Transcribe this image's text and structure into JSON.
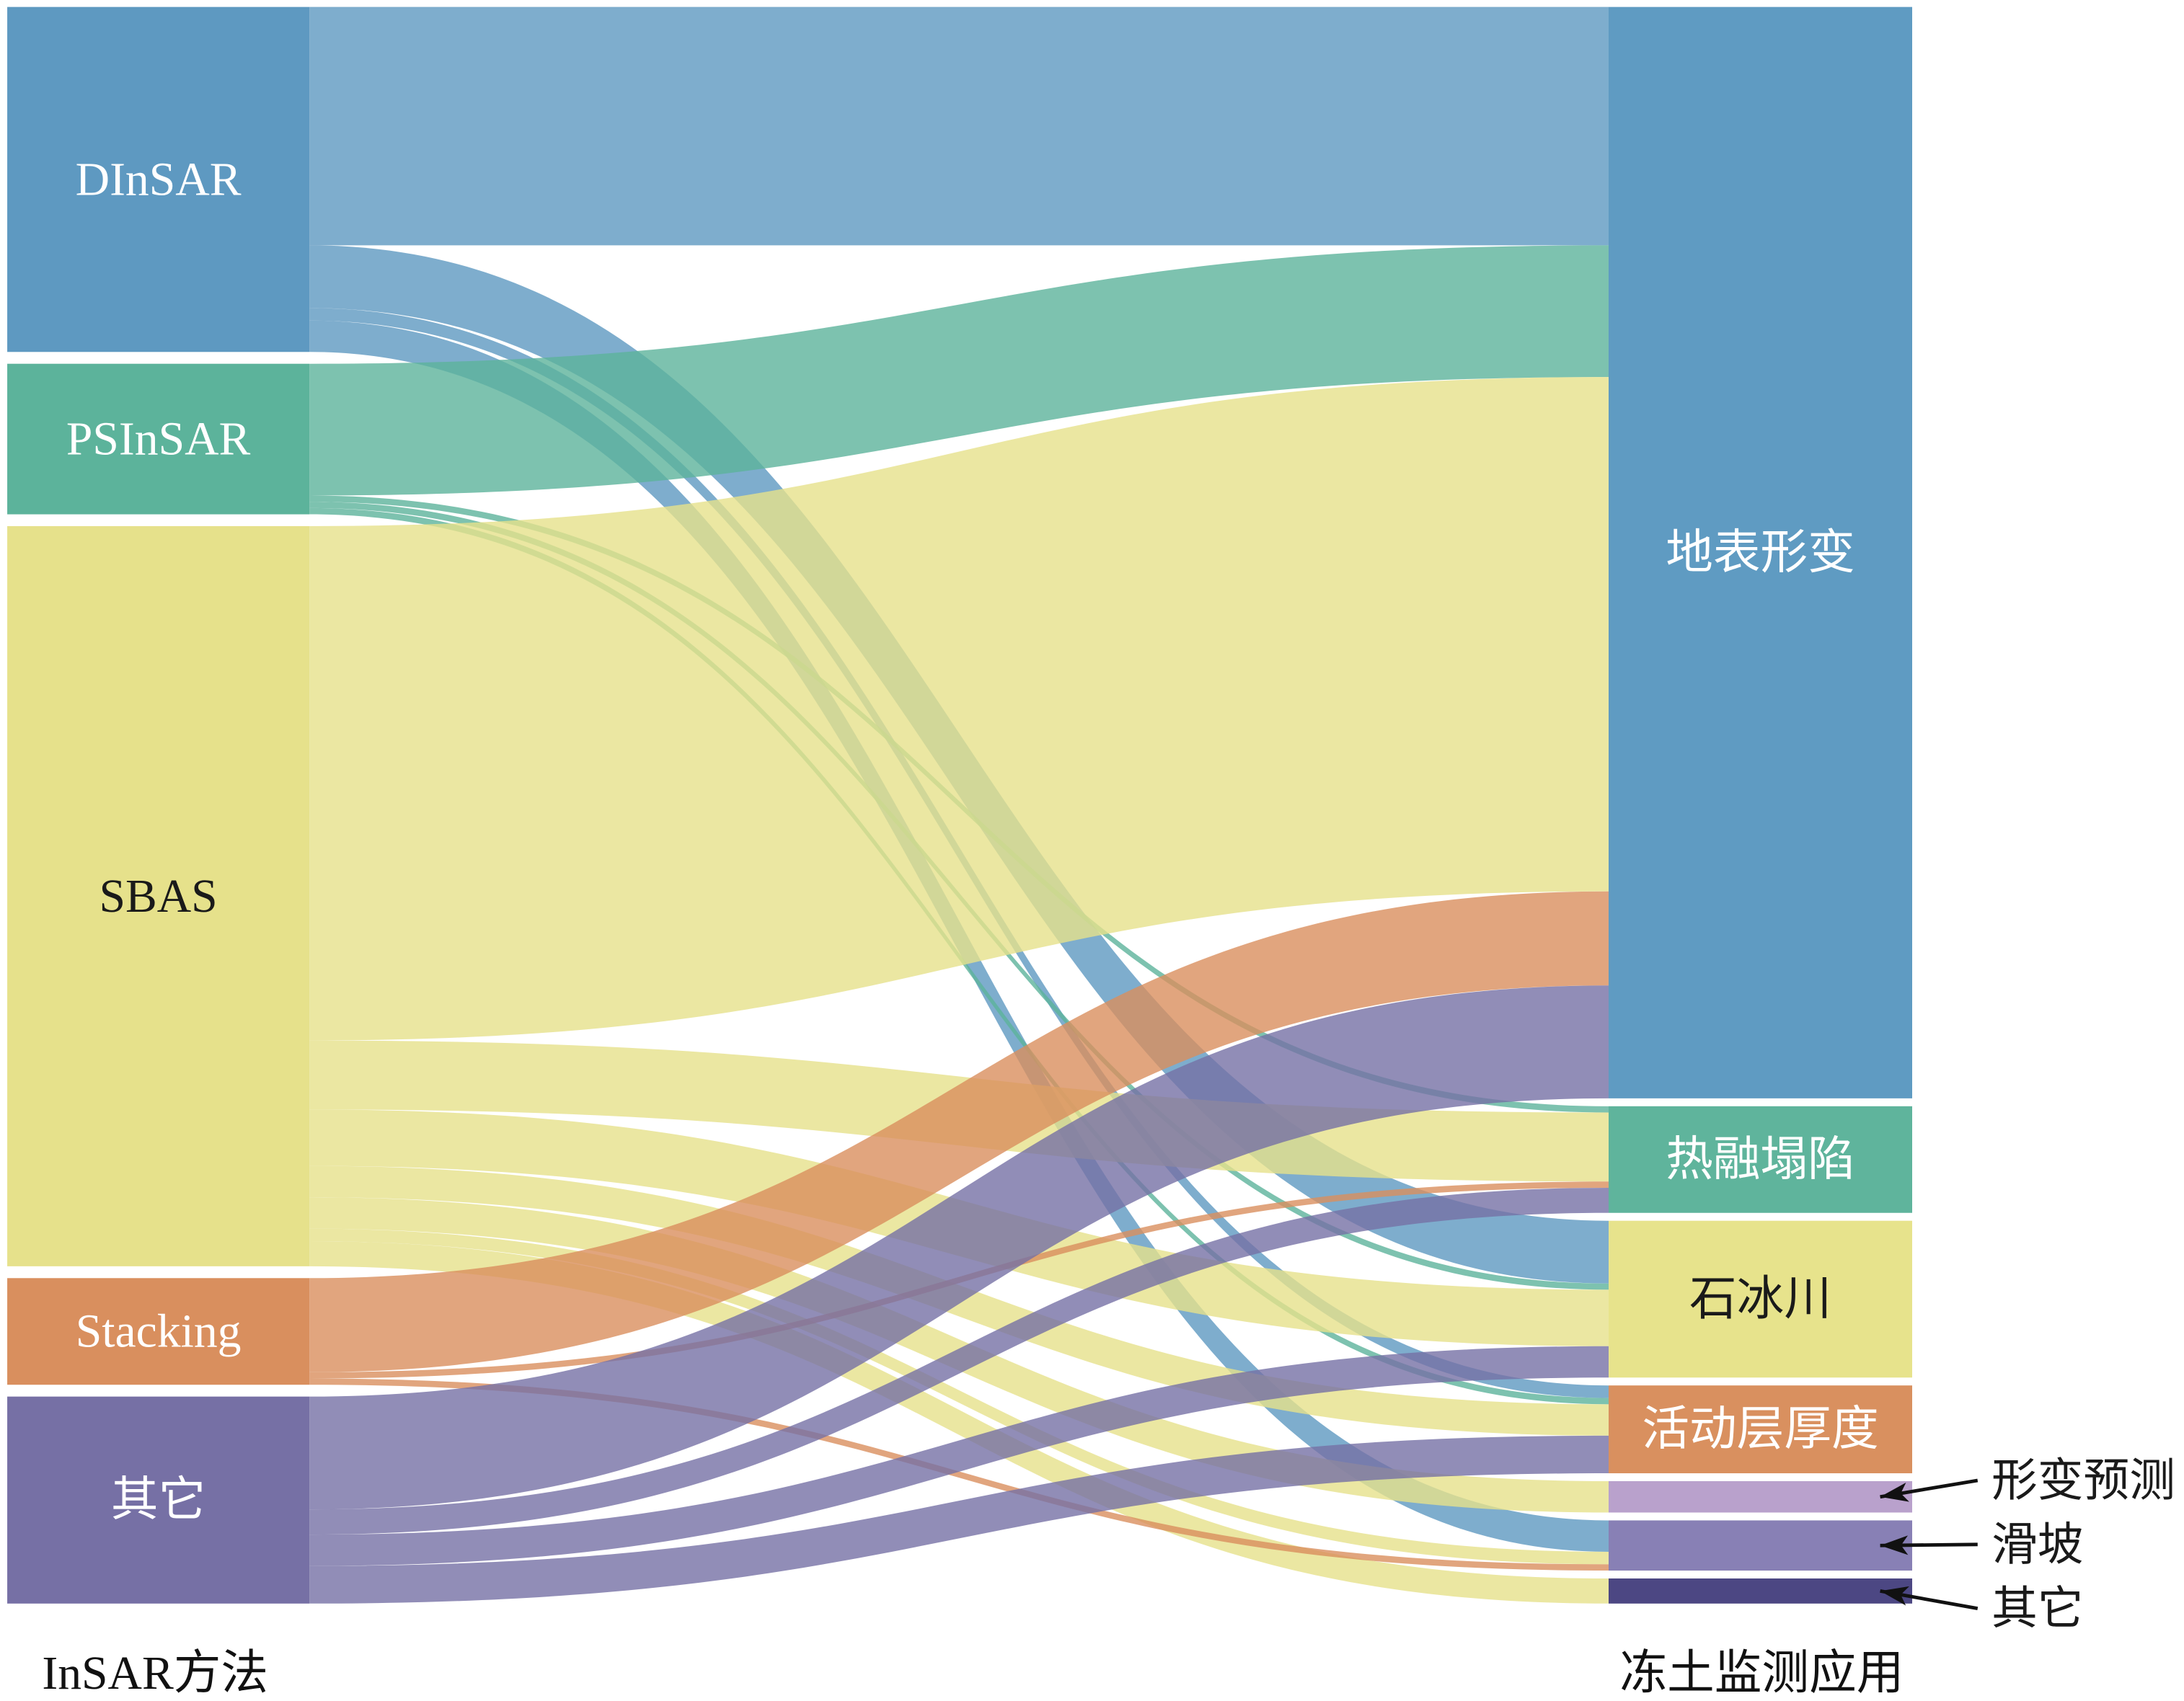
{
  "chart_data": {
    "type": "sankey",
    "source_column_label": "InSAR方法",
    "target_column_label": "冻土监测应用",
    "sources": [
      {
        "name": "DInSAR",
        "color": "#5e99c1",
        "label_color": "#ffffff"
      },
      {
        "name": "PSInSAR",
        "color": "#5cb39b",
        "label_color": "#ffffff"
      },
      {
        "name": "SBAS",
        "color": "#e6e18b",
        "label_color": "#1a1a1a"
      },
      {
        "name": "Stacking",
        "color": "#d98f5e",
        "label_color": "#ffffff"
      },
      {
        "name": "其它",
        "color": "#7670a5",
        "label_color": "#ffffff"
      }
    ],
    "targets": [
      {
        "name": "地表形变",
        "color": "#5f9bc2",
        "label_color": "#ffffff"
      },
      {
        "name": "热融塌陷",
        "color": "#5fb49c",
        "label_color": "#ffffff"
      },
      {
        "name": "石冰川",
        "color": "#e7e38c",
        "label_color": "#1a1a1a"
      },
      {
        "name": "活动层厚度",
        "color": "#d9905f",
        "label_color": "#ffffff"
      },
      {
        "name": "形变预测",
        "color": "#b9a1cc",
        "label_color": "#1a1a1a"
      },
      {
        "name": "滑坡",
        "color": "#8880b5",
        "label_color": "#1a1a1a"
      },
      {
        "name": "其它",
        "color": "#4c4783",
        "label_color": "#1a1a1a"
      }
    ],
    "links": [
      {
        "source": 0,
        "target": 0,
        "value": 38
      },
      {
        "source": 0,
        "target": 2,
        "value": 10
      },
      {
        "source": 0,
        "target": 3,
        "value": 2
      },
      {
        "source": 0,
        "target": 5,
        "value": 5
      },
      {
        "source": 1,
        "target": 0,
        "value": 21
      },
      {
        "source": 1,
        "target": 1,
        "value": 1
      },
      {
        "source": 1,
        "target": 2,
        "value": 1
      },
      {
        "source": 1,
        "target": 3,
        "value": 1
      },
      {
        "source": 2,
        "target": 0,
        "value": 82
      },
      {
        "source": 2,
        "target": 1,
        "value": 11
      },
      {
        "source": 2,
        "target": 2,
        "value": 9
      },
      {
        "source": 2,
        "target": 3,
        "value": 5
      },
      {
        "source": 2,
        "target": 4,
        "value": 5
      },
      {
        "source": 2,
        "target": 5,
        "value": 2
      },
      {
        "source": 2,
        "target": 6,
        "value": 4
      },
      {
        "source": 3,
        "target": 0,
        "value": 15
      },
      {
        "source": 3,
        "target": 1,
        "value": 1
      },
      {
        "source": 3,
        "target": 5,
        "value": 1
      },
      {
        "source": 4,
        "target": 0,
        "value": 18
      },
      {
        "source": 4,
        "target": 1,
        "value": 4
      },
      {
        "source": 4,
        "target": 2,
        "value": 5
      },
      {
        "source": 4,
        "target": 3,
        "value": 6
      }
    ]
  }
}
